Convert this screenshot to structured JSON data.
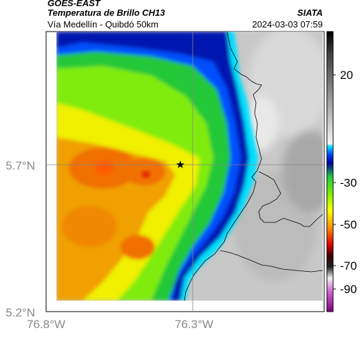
{
  "header": {
    "satellite": "GOES-EAST",
    "product": "Temperatura de Brillo CH13",
    "route": "Vía Medellín - Quibdó 50km",
    "agency": "SIATA",
    "datetime": "2024-03-03 07:59"
  },
  "map": {
    "lat_labels": [
      "5.7°N",
      "5.2°N"
    ],
    "lon_labels": [
      "76.8°W",
      "76.3°W"
    ],
    "marker": "star-marker"
  },
  "colorbar": {
    "ticks": [
      "20",
      "-30",
      "-50",
      "-70",
      "-90"
    ],
    "colors": {
      "warm": "#e6e6e6",
      "cyan": "#00d8f0",
      "blue": "#0010a0",
      "green": "#20d020",
      "yellow": "#f0f000",
      "orange": "#f08000",
      "red": "#e00000",
      "magenta": "#c040c0"
    }
  }
}
